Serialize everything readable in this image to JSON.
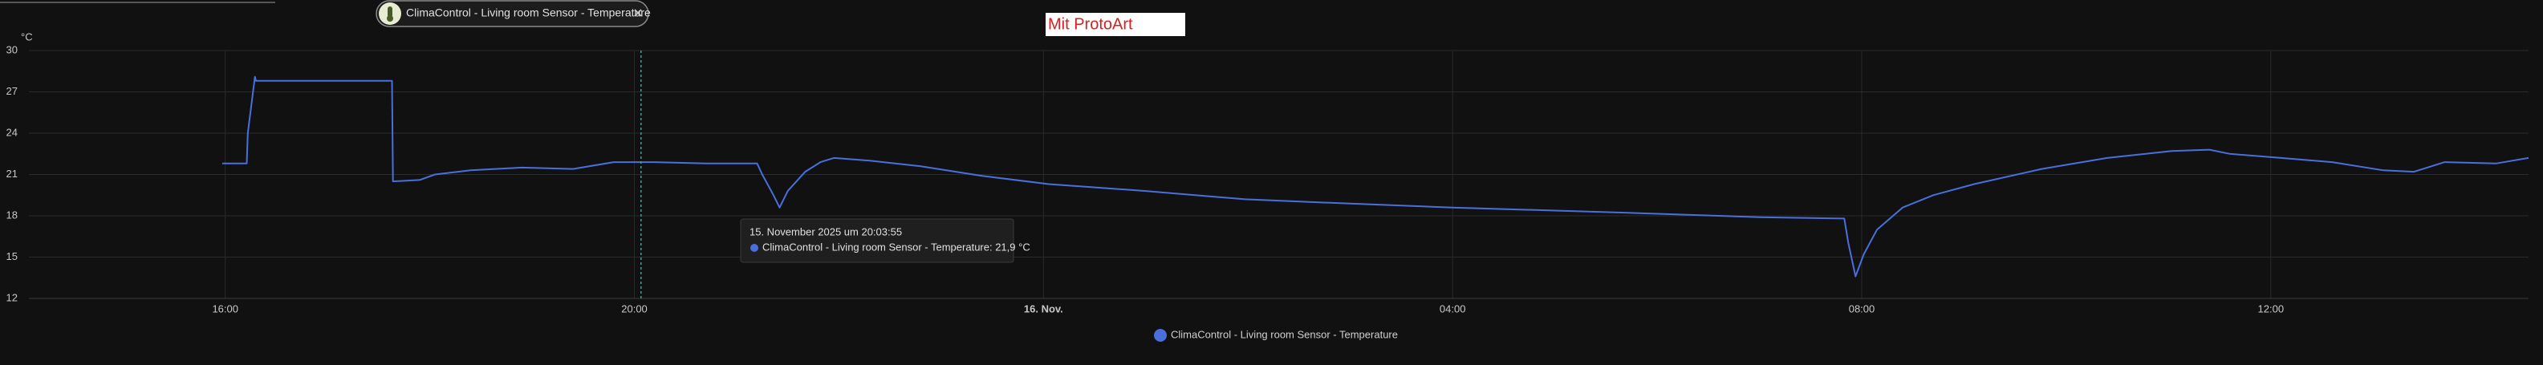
{
  "filter_chip": {
    "label": "ClimaControl - Living room Sensor - Temperature"
  },
  "watermark": "Mit ProtoArt",
  "chart_data": {
    "type": "line",
    "y_label": "°C",
    "x": [
      15.97,
      16.21,
      16.22,
      16.29,
      16.3,
      17.63,
      17.64,
      17.9,
      18.05,
      18.4,
      18.9,
      19.4,
      19.8,
      20.2,
      20.7,
      21.2,
      21.25,
      21.36,
      21.42,
      21.5,
      21.67,
      21.82,
      21.95,
      22.3,
      22.8,
      23.4,
      24.05,
      25.0,
      25.97,
      26.6,
      28.0,
      29.8,
      31.0,
      31.83,
      31.87,
      31.94,
      32.02,
      32.15,
      32.4,
      32.7,
      33.1,
      33.76,
      34.4,
      35.03,
      35.4,
      35.6,
      36.1,
      36.6,
      37.1,
      37.4,
      37.7,
      38.2,
      38.52
    ],
    "series": [
      {
        "name": "ClimaControl - Living room Sensor - Temperature",
        "color": "#4a6fdc",
        "values": [
          21.8,
          21.8,
          24.0,
          28.1,
          27.8,
          27.8,
          20.5,
          20.6,
          21.0,
          21.3,
          21.5,
          21.4,
          21.9,
          21.9,
          21.8,
          21.8,
          21.0,
          19.5,
          18.6,
          19.8,
          21.2,
          21.9,
          22.2,
          22.0,
          21.6,
          20.9,
          20.3,
          19.8,
          19.2,
          19.0,
          18.6,
          18.2,
          17.9,
          17.8,
          16.0,
          13.6,
          15.2,
          17.0,
          18.6,
          19.5,
          20.3,
          21.4,
          22.2,
          22.7,
          22.8,
          22.5,
          22.2,
          21.9,
          21.3,
          21.2,
          21.9,
          21.8,
          22.2
        ]
      }
    ],
    "xlim": [
      14.08,
      38.52
    ],
    "ylim": [
      12,
      30
    ],
    "xticks": [
      {
        "value": 16,
        "label": "16:00"
      },
      {
        "value": 20,
        "label": "20:00"
      },
      {
        "value": 24,
        "label": "16. Nov."
      },
      {
        "value": 28,
        "label": "04:00"
      },
      {
        "value": 32,
        "label": "08:00"
      },
      {
        "value": 36,
        "label": "12:00"
      }
    ],
    "yticks": [
      12,
      15,
      18,
      21,
      24,
      27,
      30
    ],
    "grid": true,
    "legend": "bottom",
    "tooltip": {
      "x": 20.065,
      "title": "15. November 2025 um 20:03:55",
      "text": "ClimaControl - Living room Sensor - Temperature: 21,9 °C"
    }
  }
}
